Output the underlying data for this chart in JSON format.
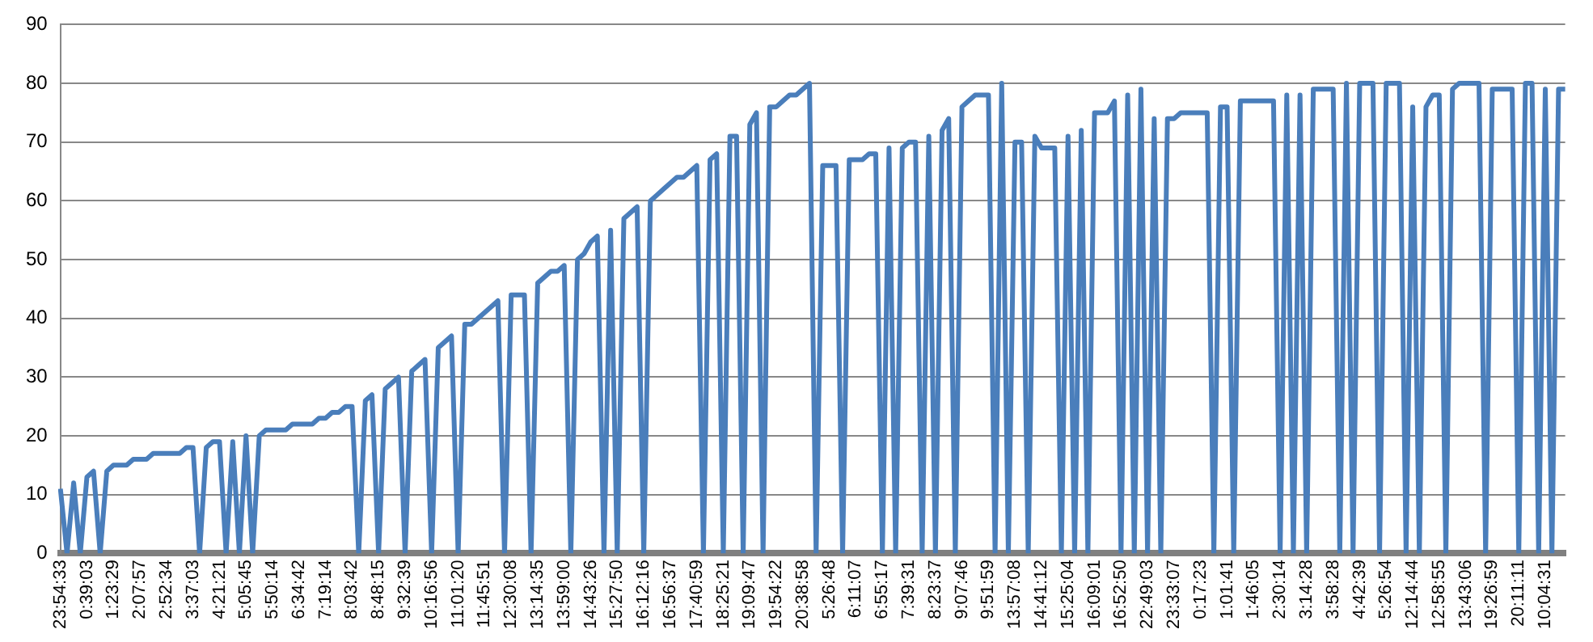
{
  "chart_data": {
    "type": "line",
    "ylim": [
      0,
      90
    ],
    "yticks": [
      0,
      10,
      20,
      30,
      40,
      50,
      60,
      70,
      80,
      90
    ],
    "grid": "y",
    "color": "#4a7ebb",
    "categories": [
      "23:54:33",
      null,
      null,
      null,
      "0:39:03",
      null,
      null,
      null,
      "1:23:29",
      null,
      null,
      null,
      "2:07:57",
      null,
      null,
      null,
      "2:52:34",
      null,
      null,
      null,
      "3:37:03",
      null,
      null,
      null,
      "4:21:21",
      null,
      null,
      null,
      "5:05:45",
      null,
      null,
      null,
      "5:50:14",
      null,
      null,
      null,
      "6:34:42",
      null,
      null,
      null,
      "7:19:14",
      null,
      null,
      null,
      "8:03:42",
      null,
      null,
      null,
      "8:48:15",
      null,
      null,
      null,
      "9:32:39",
      null,
      null,
      null,
      "10:16:56",
      null,
      null,
      null,
      "11:01:20",
      null,
      null,
      null,
      "11:45:51",
      null,
      null,
      null,
      "12:30:08",
      null,
      null,
      null,
      "13:14:35",
      null,
      null,
      null,
      "13:59:00",
      null,
      null,
      null,
      "14:43:26",
      null,
      null,
      null,
      "15:27:50",
      null,
      null,
      null,
      "16:12:16",
      null,
      null,
      null,
      "16:56:37",
      null,
      null,
      null,
      "17:40:59",
      null,
      null,
      null,
      "18:25:21",
      null,
      null,
      null,
      "19:09:47",
      null,
      null,
      null,
      "19:54:22",
      null,
      null,
      null,
      "20:38:58",
      null,
      null,
      null,
      "5:26:48",
      null,
      null,
      null,
      "6:11:07",
      null,
      null,
      null,
      "6:55:17",
      null,
      null,
      null,
      "7:39:31",
      null,
      null,
      null,
      "8:23:37",
      null,
      null,
      null,
      "9:07:46",
      null,
      null,
      null,
      "9:51:59",
      null,
      null,
      null,
      "13:57:08",
      null,
      null,
      null,
      "14:41:12",
      null,
      null,
      null,
      "15:25:04",
      null,
      null,
      null,
      "16:09:01",
      null,
      null,
      null,
      "16:52:50",
      null,
      null,
      null,
      "22:49:03",
      null,
      null,
      null,
      "23:33:07",
      null,
      null,
      null,
      "0:17:23",
      null,
      null,
      null,
      "1:01:41",
      null,
      null,
      null,
      "1:46:05",
      null,
      null,
      null,
      "2:30:14",
      null,
      null,
      null,
      "3:14:28",
      null,
      null,
      null,
      "3:58:28",
      null,
      null,
      null,
      "4:42:39",
      null,
      null,
      null,
      "5:26:54",
      null,
      null,
      null,
      "12:14:44",
      null,
      null,
      null,
      "12:58:55",
      null,
      null,
      null,
      "13:43:06",
      null,
      null,
      null,
      "19:26:59",
      null,
      null,
      null,
      "20:11:11",
      null,
      null,
      null,
      "10:04:31",
      null,
      null,
      null
    ],
    "values": [
      11,
      0,
      12,
      0,
      13,
      14,
      0,
      14,
      15,
      15,
      15,
      16,
      16,
      16,
      17,
      17,
      17,
      17,
      17,
      18,
      18,
      0,
      18,
      19,
      19,
      0,
      19,
      0,
      20,
      0,
      20,
      21,
      21,
      21,
      21,
      22,
      22,
      22,
      22,
      23,
      23,
      24,
      24,
      25,
      25,
      0,
      26,
      27,
      0,
      28,
      29,
      30,
      0,
      31,
      32,
      33,
      0,
      35,
      36,
      37,
      0,
      39,
      39,
      40,
      41,
      42,
      43,
      0,
      44,
      44,
      44,
      0,
      46,
      47,
      48,
      48,
      49,
      0,
      50,
      51,
      53,
      54,
      0,
      55,
      0,
      57,
      58,
      59,
      0,
      60,
      61,
      62,
      63,
      64,
      64,
      65,
      66,
      0,
      67,
      68,
      0,
      71,
      71,
      0,
      73,
      75,
      0,
      76,
      76,
      77,
      78,
      78,
      79,
      80,
      0,
      66,
      66,
      66,
      0,
      67,
      67,
      67,
      68,
      68,
      0,
      69,
      0,
      69,
      70,
      70,
      0,
      71,
      0,
      72,
      74,
      0,
      76,
      77,
      78,
      78,
      78,
      0,
      80,
      0,
      70,
      70,
      0,
      71,
      69,
      69,
      69,
      0,
      71,
      0,
      72,
      0,
      75,
      75,
      75,
      77,
      0,
      78,
      0,
      79,
      0,
      74,
      0,
      74,
      74,
      75,
      75,
      75,
      75,
      75,
      0,
      76,
      76,
      0,
      77,
      77,
      77,
      77,
      77,
      77,
      0,
      78,
      0,
      78,
      0,
      79,
      79,
      79,
      79,
      0,
      80,
      0,
      80,
      80,
      80,
      0,
      80,
      80,
      80,
      0,
      76,
      0,
      76,
      78,
      78,
      0,
      79,
      80,
      80,
      80,
      80,
      0,
      79,
      79,
      79,
      79,
      0,
      80,
      80,
      0,
      79,
      0,
      79,
      79
    ]
  }
}
